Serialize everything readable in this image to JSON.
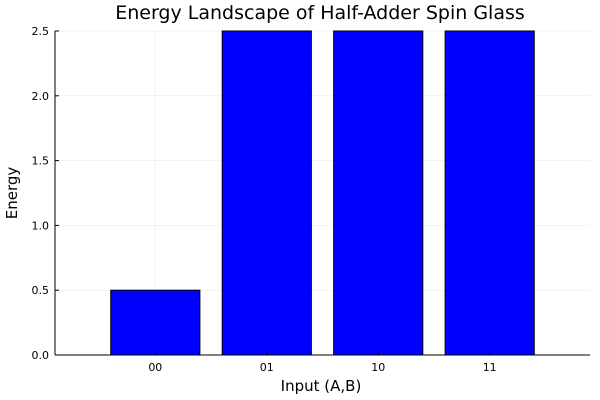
{
  "chart_data": {
    "type": "bar",
    "title": "Energy Landscape of Half-Adder Spin Glass",
    "xlabel": "Input (A,B)",
    "ylabel": "Energy",
    "categories": [
      "00",
      "01",
      "10",
      "11"
    ],
    "values": [
      0.5,
      2.5,
      2.5,
      2.5
    ],
    "ylim": [
      0,
      2.5
    ],
    "yticks": [
      0.0,
      0.5,
      1.0,
      1.5,
      2.0,
      2.5
    ],
    "ytick_labels": [
      "0.0",
      "0.5",
      "1.0",
      "1.5",
      "2.0",
      "2.5"
    ],
    "grid": true,
    "legend": "none",
    "bar_color": "#0000ff"
  }
}
